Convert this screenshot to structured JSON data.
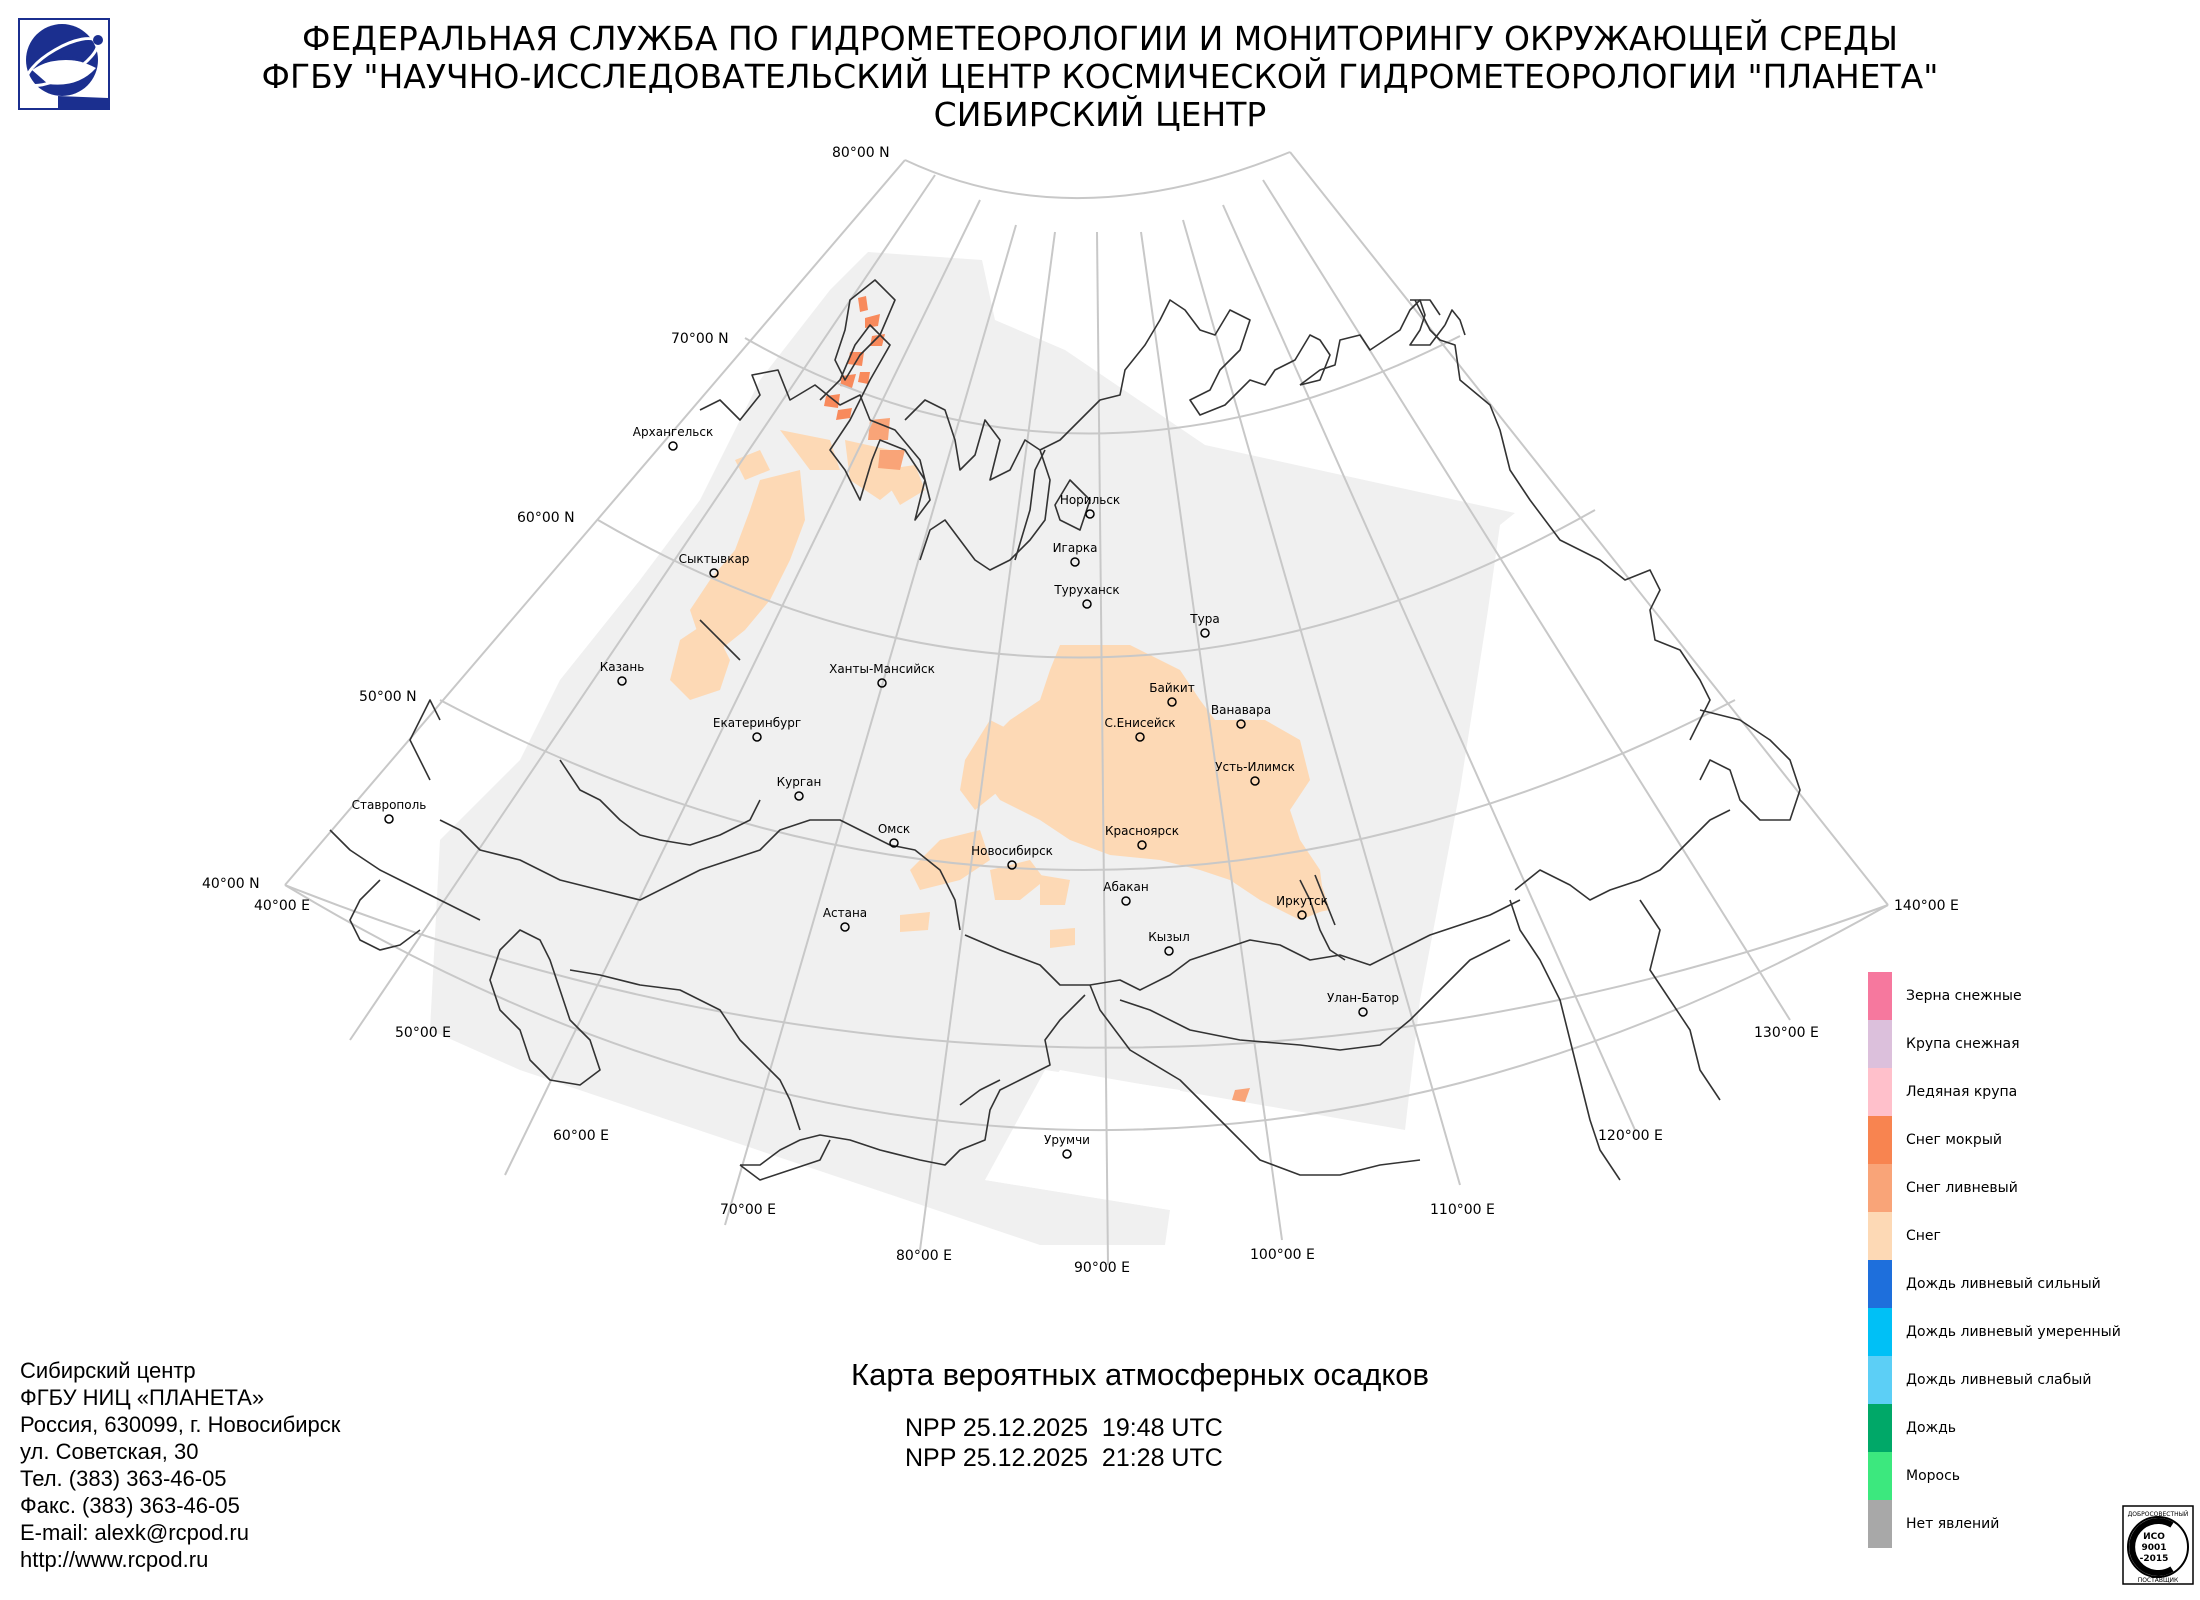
{
  "header": {
    "line1": "ФЕДЕРАЛЬНАЯ СЛУЖБА ПО ГИДРОМЕТЕОРОЛОГИИ И МОНИТОРИНГУ ОКРУЖАЮЩЕЙ СРЕДЫ",
    "line2": "ФГБУ \"НАУЧНО-ИССЛЕДОВАТЕЛЬСКИЙ ЦЕНТР КОСМИЧЕСКОЙ ГИДРОМЕТЕОРОЛОГИИ \"ПЛАНЕТА\"",
    "line3": "СИБИРСКИЙ ЦЕНТР"
  },
  "map": {
    "lat_labels": [
      "80°00 N",
      "70°00 N",
      "60°00 N",
      "50°00 N",
      "40°00 N"
    ],
    "lon_labels": [
      "40°00 E",
      "50°00 E",
      "60°00 E",
      "70°00 E",
      "80°00 E",
      "90°00 E",
      "100°00 E",
      "110°00 E",
      "120°00 E",
      "130°00 E",
      "140°00 E"
    ],
    "cities": [
      "Архангельск",
      "Сыктывкар",
      "Казань",
      "Ставрополь",
      "Екатеринбург",
      "Курган",
      "Ханты-Мансийск",
      "Омск",
      "Астана",
      "Новосибирск",
      "Норильск",
      "Игарка",
      "Туруханск",
      "Тура",
      "Байкит",
      "Ванавара",
      "С.Енисейск",
      "Усть-Илимск",
      "Красноярск",
      "Абакан",
      "Кызыл",
      "Иркутск",
      "Улан-Батор",
      "Урумчи"
    ],
    "colors": {
      "coverage": "#f0f0f0",
      "snow": "#fdd9b5",
      "wet_snow": "#f88a5c",
      "grid": "#c8c8c8",
      "border": "#333333"
    }
  },
  "legend": {
    "items": [
      {
        "label": "Зерна снежные",
        "color": "#f6789e"
      },
      {
        "label": "Крупа снежная",
        "color": "#dcc0dc"
      },
      {
        "label": "Ледяная крупа",
        "color": "#ffc0cb"
      },
      {
        "label": "Снег мокрый",
        "color": "#f88450"
      },
      {
        "label": "Снег ливневый",
        "color": "#f9a478"
      },
      {
        "label": "Снег",
        "color": "#fdd9b5"
      },
      {
        "label": "Дождь ливневый сильный",
        "color": "#1e6fdc"
      },
      {
        "label": "Дождь ливневый умеренный",
        "color": "#00c0f6"
      },
      {
        "label": "Дождь ливневый слабый",
        "color": "#5ccff6"
      },
      {
        "label": "Дождь",
        "color": "#00a868"
      },
      {
        "label": "Морось",
        "color": "#3ce87e"
      },
      {
        "label": "Нет явлений",
        "color": "#a8a8a8"
      }
    ]
  },
  "contact": {
    "lines": [
      "Сибирский центр",
      "ФГБУ НИЦ «ПЛАНЕТА»",
      "Россия, 630099, г. Новосибирск",
      "ул. Советская, 30",
      "Тел. (383) 363-46-05",
      "Факс. (383) 363-46-05",
      "E-mail: alexk@rcpod.ru",
      "http://www.rcpod.ru"
    ]
  },
  "map_title": "Карта вероятных атмосферных осадков",
  "passes": [
    "NPP 25.12.2025  19:48 UTC",
    "NPP 25.12.2025  21:28 UTC"
  ],
  "iso": {
    "top": "ДОБРОСОВЕСТНЫЙ",
    "code1": "ИСО",
    "code2": "9001",
    "code3": "-2015",
    "bottom": "ПОСТАВЩИК"
  }
}
